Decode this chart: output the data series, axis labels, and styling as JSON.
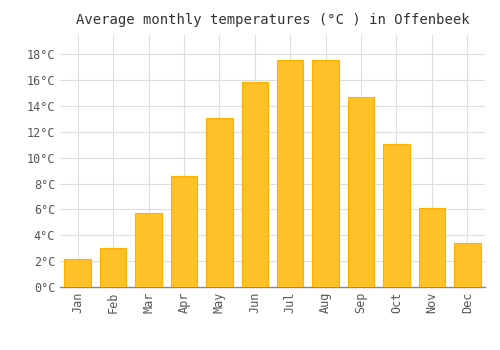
{
  "title": "Average monthly temperatures (°C ) in Offenbeek",
  "months": [
    "Jan",
    "Feb",
    "Mar",
    "Apr",
    "May",
    "Jun",
    "Jul",
    "Aug",
    "Sep",
    "Oct",
    "Nov",
    "Dec"
  ],
  "temperatures": [
    2.2,
    3.0,
    5.7,
    8.6,
    13.1,
    15.9,
    17.6,
    17.6,
    14.7,
    11.1,
    6.1,
    3.4
  ],
  "bar_color": "#FFC125",
  "bar_edge_color": "#FFB000",
  "background_color": "#FFFFFF",
  "plot_bg_color": "#FFFFFF",
  "grid_color": "#DDDDDD",
  "ylim": [
    0,
    19.5
  ],
  "yticks": [
    0,
    2,
    4,
    6,
    8,
    10,
    12,
    14,
    16,
    18
  ],
  "title_fontsize": 10,
  "tick_fontsize": 8.5,
  "tick_font_family": "monospace"
}
